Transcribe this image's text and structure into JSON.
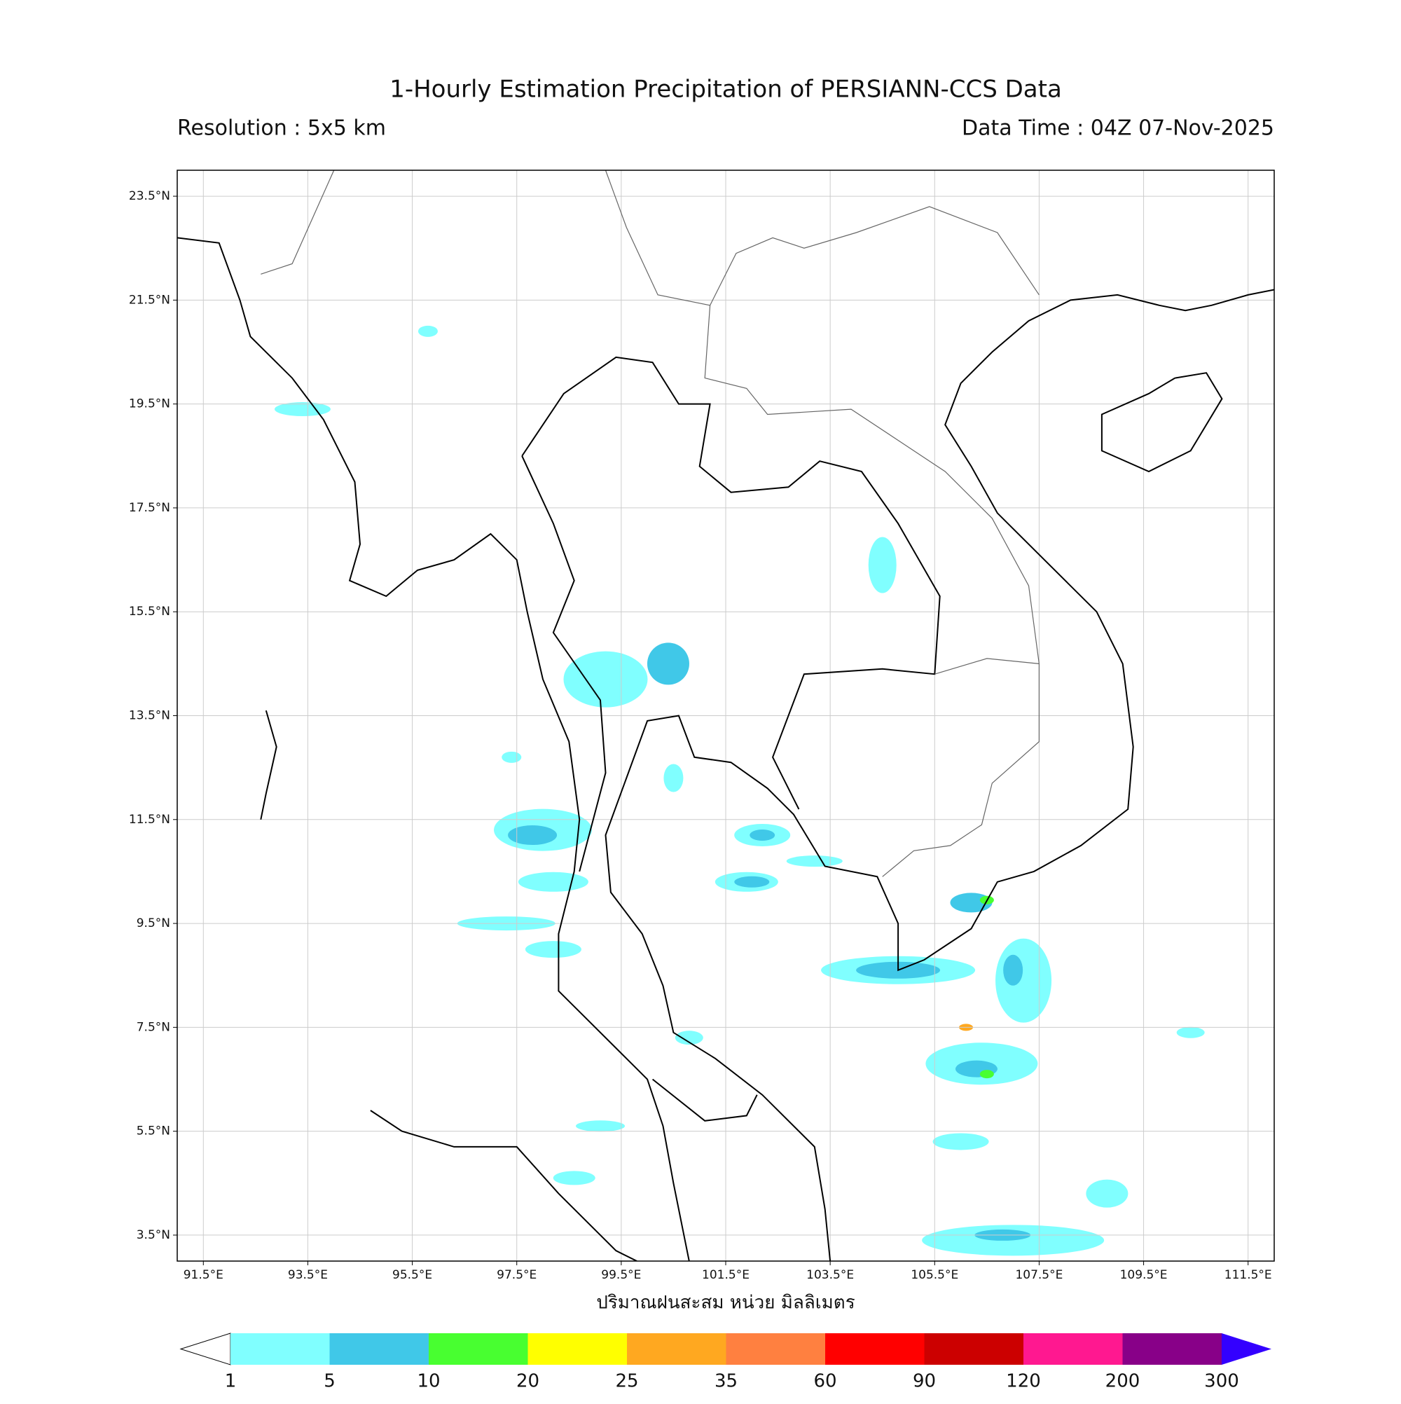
{
  "chart_data": {
    "type": "map",
    "title": "1-Hourly Estimation Precipitation of PERSIANN-CCS Data",
    "subtitle_left": "Resolution : 5x5 km",
    "subtitle_right": "Data Time : 04Z 07-Nov-2025",
    "xlim": [
      91,
      112
    ],
    "ylim": [
      3,
      24
    ],
    "xticks": [
      {
        "value": 91.5,
        "label": "91.5°E"
      },
      {
        "value": 93.5,
        "label": "93.5°E"
      },
      {
        "value": 95.5,
        "label": "95.5°E"
      },
      {
        "value": 97.5,
        "label": "97.5°E"
      },
      {
        "value": 99.5,
        "label": "99.5°E"
      },
      {
        "value": 101.5,
        "label": "101.5°E"
      },
      {
        "value": 103.5,
        "label": "103.5°E"
      },
      {
        "value": 105.5,
        "label": "105.5°E"
      },
      {
        "value": 107.5,
        "label": "107.5°E"
      },
      {
        "value": 109.5,
        "label": "109.5°E"
      },
      {
        "value": 111.5,
        "label": "111.5°E"
      }
    ],
    "yticks": [
      {
        "value": 23.5,
        "label": "23.5°N"
      },
      {
        "value": 21.5,
        "label": "21.5°N"
      },
      {
        "value": 19.5,
        "label": "19.5°N"
      },
      {
        "value": 17.5,
        "label": "17.5°N"
      },
      {
        "value": 15.5,
        "label": "15.5°N"
      },
      {
        "value": 13.5,
        "label": "13.5°N"
      },
      {
        "value": 11.5,
        "label": "11.5°N"
      },
      {
        "value": 9.5,
        "label": "9.5°N"
      },
      {
        "value": 7.5,
        "label": "7.5°N"
      },
      {
        "value": 5.5,
        "label": "5.5°N"
      },
      {
        "value": 3.5,
        "label": "3.5°N"
      }
    ],
    "grid": true,
    "colorbar": {
      "label": "ปริมาณฝนสะสม หน่วย มิลลิเมตร",
      "levels": [
        1,
        5,
        10,
        20,
        25,
        35,
        60,
        90,
        120,
        200,
        300
      ],
      "colors": [
        "#80ffff",
        "#40c8e8",
        "#48ff30",
        "#ffff00",
        "#ffa820",
        "#ff8040",
        "#ff0000",
        "#cc0000",
        "#ff1890",
        "#880088"
      ],
      "under_color": "#ffffff",
      "over_color": "#3300ff"
    }
  }
}
